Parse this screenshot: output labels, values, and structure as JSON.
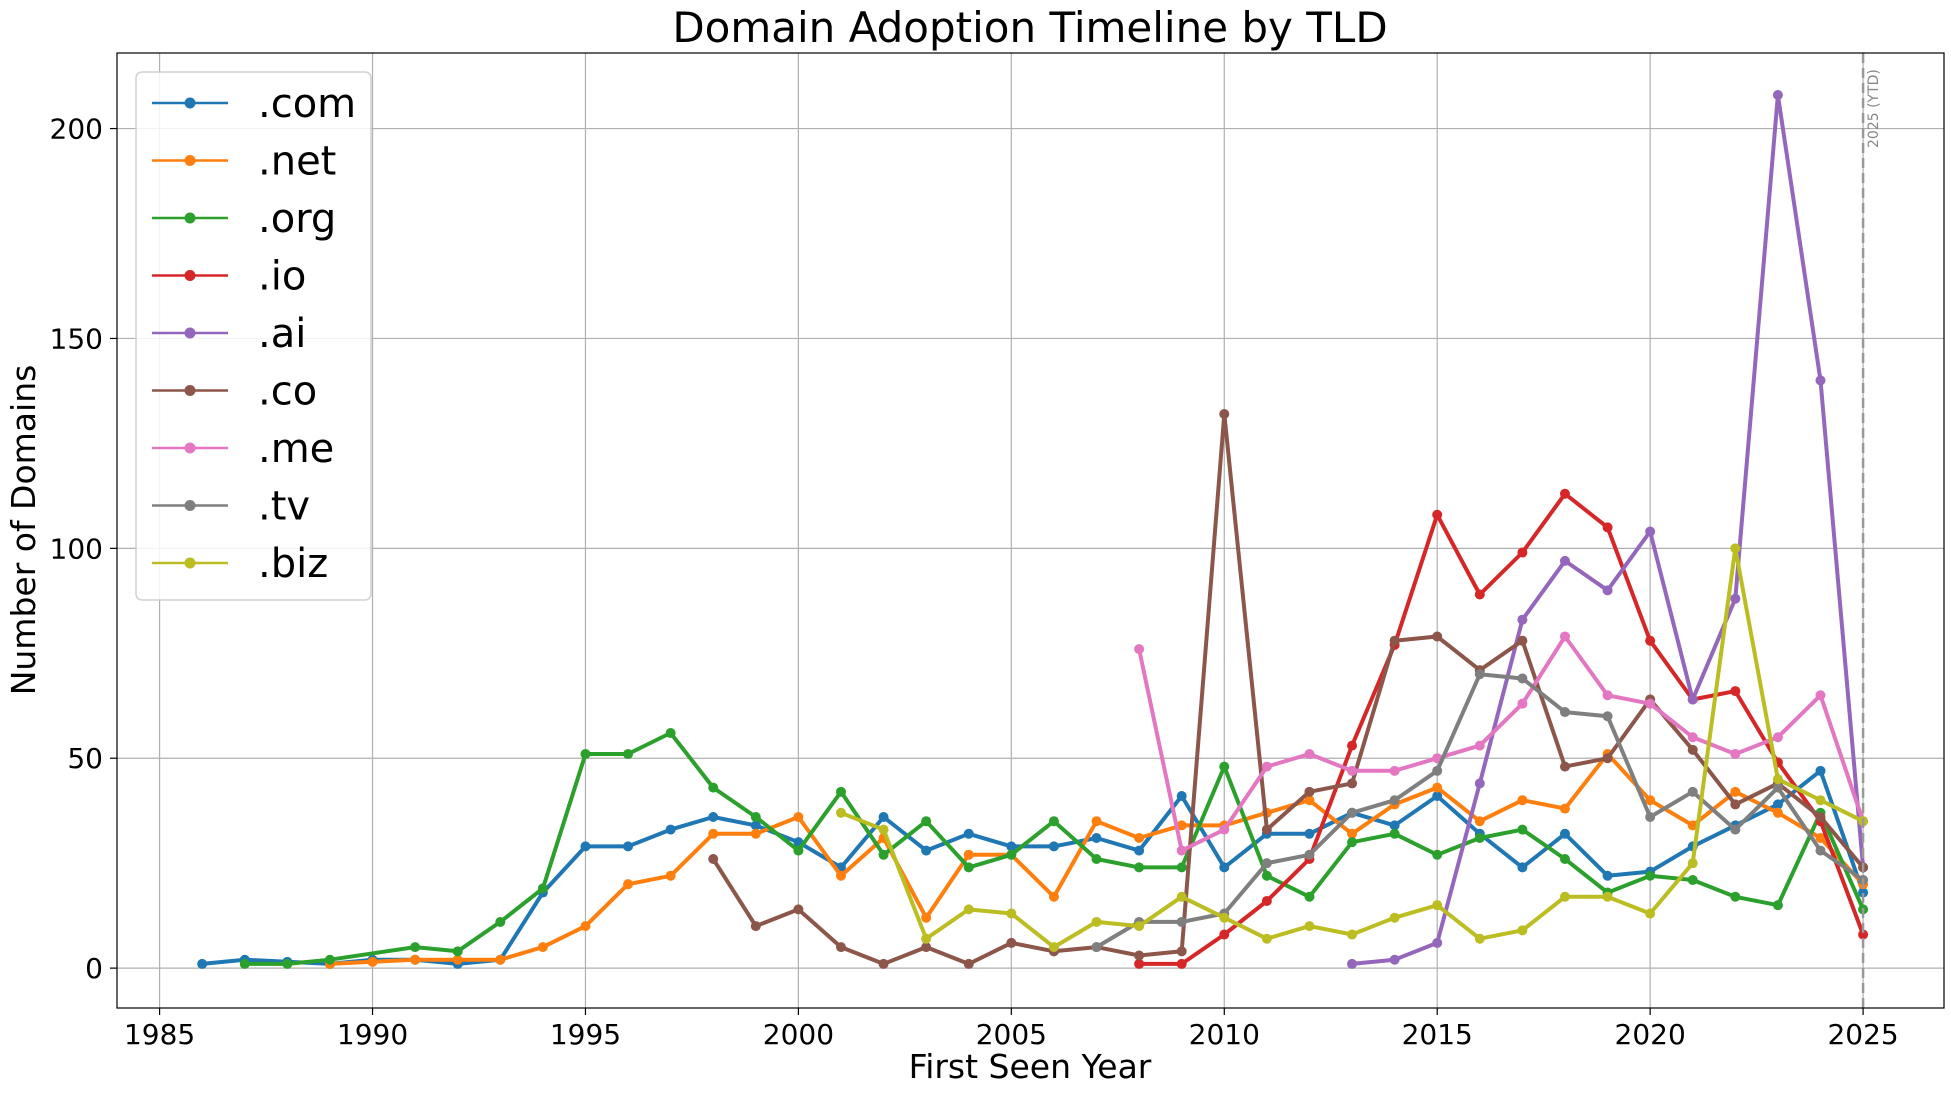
{
  "chart_data": {
    "type": "line",
    "title": "Domain Adoption Timeline by TLD",
    "xlabel": "First Seen Year",
    "ylabel": "Number of Domains",
    "xlim": [
      1984,
      2026.9
    ],
    "ylim": [
      -9.5,
      218
    ],
    "xticks": [
      1985,
      1990,
      1995,
      2000,
      2005,
      2010,
      2015,
      2020,
      2025
    ],
    "yticks": [
      0,
      50,
      100,
      150,
      200
    ],
    "grid": true,
    "legend_position": "top-left",
    "annotation": {
      "x": 2025,
      "text": "2025 (YTD)"
    },
    "series": [
      {
        "name": ".com",
        "color": "#1f77b4",
        "points": [
          [
            1986,
            1
          ],
          [
            1987,
            2
          ],
          [
            1988,
            1.5
          ],
          [
            1989,
            1
          ],
          [
            1990,
            2
          ],
          [
            1991,
            2
          ],
          [
            1992,
            1
          ],
          [
            1993,
            2
          ],
          [
            1994,
            18
          ],
          [
            1995,
            29
          ],
          [
            1996,
            29
          ],
          [
            1997,
            33
          ],
          [
            1998,
            36
          ],
          [
            1999,
            34
          ],
          [
            2000,
            30
          ],
          [
            2001,
            24
          ],
          [
            2002,
            36
          ],
          [
            2003,
            28
          ],
          [
            2004,
            32
          ],
          [
            2005,
            29
          ],
          [
            2006,
            29
          ],
          [
            2007,
            31
          ],
          [
            2008,
            28
          ],
          [
            2009,
            41
          ],
          [
            2010,
            24
          ],
          [
            2011,
            32
          ],
          [
            2012,
            32
          ],
          [
            2013,
            37
          ],
          [
            2014,
            34
          ],
          [
            2015,
            41
          ],
          [
            2016,
            32
          ],
          [
            2017,
            24
          ],
          [
            2018,
            32
          ],
          [
            2019,
            22
          ],
          [
            2020,
            23
          ],
          [
            2021,
            29
          ],
          [
            2022,
            34
          ],
          [
            2023,
            39
          ],
          [
            2024,
            47
          ],
          [
            2025,
            18
          ]
        ]
      },
      {
        "name": ".net",
        "color": "#ff7f0e",
        "points": [
          [
            1989,
            1
          ],
          [
            1990,
            1.5
          ],
          [
            1991,
            2
          ],
          [
            1992,
            2
          ],
          [
            1993,
            2
          ],
          [
            1994,
            5
          ],
          [
            1995,
            10
          ],
          [
            1996,
            20
          ],
          [
            1997,
            22
          ],
          [
            1998,
            32
          ],
          [
            1999,
            32
          ],
          [
            2000,
            36
          ],
          [
            2001,
            22
          ],
          [
            2002,
            31
          ],
          [
            2003,
            12
          ],
          [
            2004,
            27
          ],
          [
            2005,
            27
          ],
          [
            2006,
            17
          ],
          [
            2007,
            35
          ],
          [
            2008,
            31
          ],
          [
            2009,
            34
          ],
          [
            2010,
            34
          ],
          [
            2011,
            37
          ],
          [
            2012,
            40
          ],
          [
            2013,
            32
          ],
          [
            2014,
            39
          ],
          [
            2015,
            43
          ],
          [
            2016,
            35
          ],
          [
            2017,
            40
          ],
          [
            2018,
            38
          ],
          [
            2019,
            51
          ],
          [
            2020,
            40
          ],
          [
            2021,
            34
          ],
          [
            2022,
            42
          ],
          [
            2023,
            37
          ],
          [
            2024,
            31
          ],
          [
            2025,
            20
          ]
        ]
      },
      {
        "name": ".org",
        "color": "#2ca02c",
        "points": [
          [
            1987,
            1
          ],
          [
            1988,
            1
          ],
          [
            1989,
            2
          ],
          [
            1991,
            5
          ],
          [
            1992,
            4
          ],
          [
            1993,
            11
          ],
          [
            1994,
            19
          ],
          [
            1995,
            51
          ],
          [
            1996,
            51
          ],
          [
            1997,
            56
          ],
          [
            1998,
            43
          ],
          [
            1999,
            36
          ],
          [
            2000,
            28
          ],
          [
            2001,
            42
          ],
          [
            2002,
            27
          ],
          [
            2003,
            35
          ],
          [
            2004,
            24
          ],
          [
            2005,
            27
          ],
          [
            2006,
            35
          ],
          [
            2007,
            26
          ],
          [
            2008,
            24
          ],
          [
            2009,
            24
          ],
          [
            2010,
            48
          ],
          [
            2011,
            22
          ],
          [
            2012,
            17
          ],
          [
            2013,
            30
          ],
          [
            2014,
            32
          ],
          [
            2015,
            27
          ],
          [
            2016,
            31
          ],
          [
            2017,
            33
          ],
          [
            2018,
            26
          ],
          [
            2019,
            18
          ],
          [
            2020,
            22
          ],
          [
            2021,
            21
          ],
          [
            2022,
            17
          ],
          [
            2023,
            15
          ],
          [
            2024,
            37
          ],
          [
            2025,
            14
          ]
        ]
      },
      {
        "name": ".io",
        "color": "#d62728",
        "points": [
          [
            2008,
            1
          ],
          [
            2009,
            1
          ],
          [
            2010,
            8
          ],
          [
            2011,
            16
          ],
          [
            2012,
            26
          ],
          [
            2013,
            53
          ],
          [
            2014,
            77
          ],
          [
            2015,
            108
          ],
          [
            2016,
            89
          ],
          [
            2017,
            99
          ],
          [
            2018,
            113
          ],
          [
            2019,
            105
          ],
          [
            2020,
            78
          ],
          [
            2021,
            64
          ],
          [
            2022,
            66
          ],
          [
            2023,
            49
          ],
          [
            2024,
            35
          ],
          [
            2025,
            8
          ]
        ]
      },
      {
        "name": ".ai",
        "color": "#9467bd",
        "points": [
          [
            2013,
            1
          ],
          [
            2014,
            2
          ],
          [
            2015,
            6
          ],
          [
            2016,
            44
          ],
          [
            2017,
            83
          ],
          [
            2018,
            97
          ],
          [
            2019,
            90
          ],
          [
            2020,
            104
          ],
          [
            2021,
            64
          ],
          [
            2022,
            88
          ],
          [
            2023,
            208
          ],
          [
            2024,
            140
          ],
          [
            2025,
            24
          ]
        ]
      },
      {
        "name": ".co",
        "color": "#8c564b",
        "points": [
          [
            1998,
            26
          ],
          [
            1999,
            10
          ],
          [
            2000,
            14
          ],
          [
            2001,
            5
          ],
          [
            2002,
            1
          ],
          [
            2003,
            5
          ],
          [
            2004,
            1
          ],
          [
            2005,
            6
          ],
          [
            2006,
            4
          ],
          [
            2007,
            5
          ],
          [
            2008,
            3
          ],
          [
            2009,
            4
          ],
          [
            2010,
            132
          ],
          [
            2011,
            33
          ],
          [
            2012,
            42
          ],
          [
            2013,
            44
          ],
          [
            2014,
            78
          ],
          [
            2015,
            79
          ],
          [
            2016,
            71
          ],
          [
            2017,
            78
          ],
          [
            2018,
            48
          ],
          [
            2019,
            50
          ],
          [
            2020,
            64
          ],
          [
            2021,
            52
          ],
          [
            2022,
            39
          ],
          [
            2023,
            44
          ],
          [
            2024,
            36
          ],
          [
            2025,
            24
          ]
        ]
      },
      {
        "name": ".me",
        "color": "#e377c2",
        "points": [
          [
            2008,
            76
          ],
          [
            2009,
            28
          ],
          [
            2010,
            33
          ],
          [
            2011,
            48
          ],
          [
            2012,
            51
          ],
          [
            2013,
            47
          ],
          [
            2014,
            47
          ],
          [
            2015,
            50
          ],
          [
            2016,
            53
          ],
          [
            2017,
            63
          ],
          [
            2018,
            79
          ],
          [
            2019,
            65
          ],
          [
            2020,
            63
          ],
          [
            2021,
            55
          ],
          [
            2022,
            51
          ],
          [
            2023,
            55
          ],
          [
            2024,
            65
          ],
          [
            2025,
            35
          ]
        ]
      },
      {
        "name": ".tv",
        "color": "#7f7f7f",
        "points": [
          [
            2007,
            5
          ],
          [
            2008,
            11
          ],
          [
            2009,
            11
          ],
          [
            2010,
            13
          ],
          [
            2011,
            25
          ],
          [
            2012,
            27
          ],
          [
            2013,
            37
          ],
          [
            2014,
            40
          ],
          [
            2015,
            47
          ],
          [
            2016,
            70
          ],
          [
            2017,
            69
          ],
          [
            2018,
            61
          ],
          [
            2019,
            60
          ],
          [
            2020,
            36
          ],
          [
            2021,
            42
          ],
          [
            2022,
            33
          ],
          [
            2023,
            43
          ],
          [
            2024,
            28
          ],
          [
            2025,
            21
          ]
        ]
      },
      {
        "name": ".biz",
        "color": "#bcbd22",
        "points": [
          [
            2001,
            37
          ],
          [
            2002,
            33
          ],
          [
            2003,
            7
          ],
          [
            2004,
            14
          ],
          [
            2005,
            13
          ],
          [
            2006,
            5
          ],
          [
            2007,
            11
          ],
          [
            2008,
            10
          ],
          [
            2009,
            17
          ],
          [
            2010,
            12
          ],
          [
            2011,
            7
          ],
          [
            2012,
            10
          ],
          [
            2013,
            8
          ],
          [
            2014,
            12
          ],
          [
            2015,
            15
          ],
          [
            2016,
            7
          ],
          [
            2017,
            9
          ],
          [
            2018,
            17
          ],
          [
            2019,
            17
          ],
          [
            2020,
            13
          ],
          [
            2021,
            25
          ],
          [
            2022,
            100
          ],
          [
            2023,
            45
          ],
          [
            2024,
            40
          ],
          [
            2025,
            35
          ]
        ]
      }
    ]
  }
}
